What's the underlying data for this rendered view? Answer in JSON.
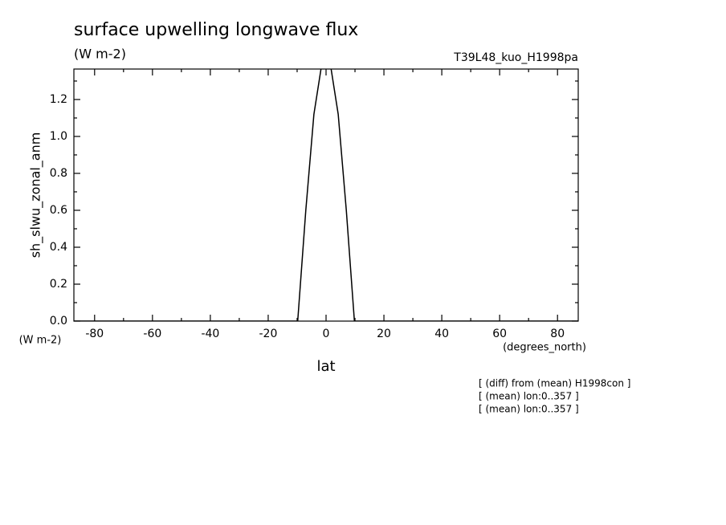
{
  "chart_data": {
    "type": "line",
    "title": "surface upwelling longwave flux",
    "subtitle": "(W m-2)",
    "run_label": "T39L48_kuo_H1998pa",
    "y_label": "sh_slwu_zonal_anm",
    "y_unit": "(W m-2)",
    "x_label": "lat",
    "x_unit": "(degrees_north)",
    "annotations": [
      "[ (diff) from (mean) H1998con ]",
      "[ (mean) lon:0..357 ]",
      "[ (mean) lon:0..357 ]"
    ],
    "x": [
      -87.16,
      -9.8,
      -7.0,
      -4.2,
      -1.4,
      1.4,
      4.2,
      7.0,
      9.8,
      87.16
    ],
    "series": [
      {
        "name": "sh_slwu_zonal_anm",
        "color": "#000000",
        "values": [
          0,
          0,
          0.6,
          1.12,
          1.4,
          1.4,
          1.12,
          0.6,
          0,
          0
        ]
      }
    ],
    "xlim": [
      -87.16,
      87.16
    ],
    "ylim": [
      0,
      1.365
    ],
    "xticks": [
      -80,
      -60,
      -40,
      -20,
      0,
      20,
      40,
      60,
      80
    ],
    "yticks": [
      {
        "value": 0,
        "label": "0.0"
      },
      {
        "value": 0.2,
        "label": "0.2"
      },
      {
        "value": 0.4,
        "label": "0.4"
      },
      {
        "value": 0.6,
        "label": "0.6"
      },
      {
        "value": 0.8,
        "label": "0.8"
      },
      {
        "value": 1.0,
        "label": "1.0"
      },
      {
        "value": 1.2,
        "label": "1.2"
      }
    ]
  }
}
